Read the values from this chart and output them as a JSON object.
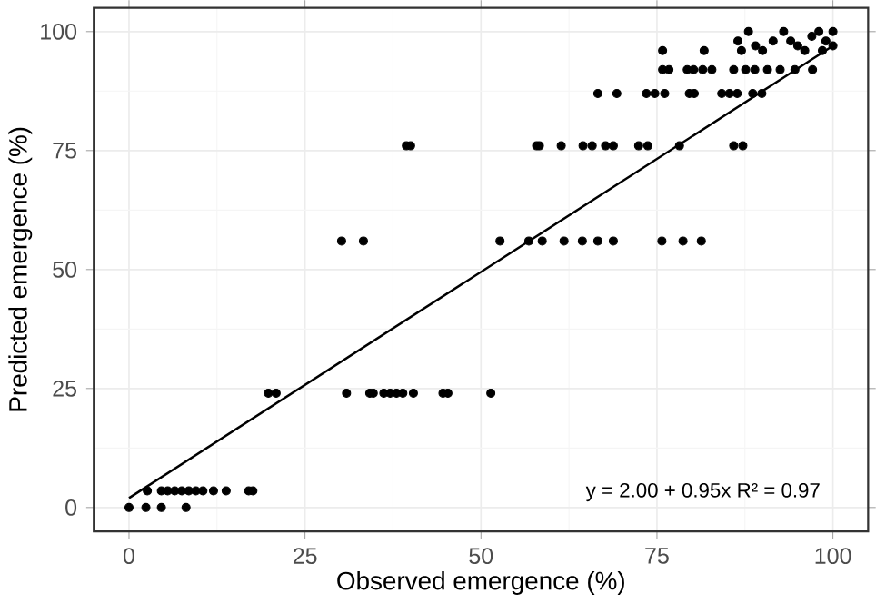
{
  "chart_data": {
    "type": "scatter",
    "xlabel": "Observed emergence (%)",
    "ylabel": "Predicted emergence (%)",
    "xlim": [
      -5,
      105
    ],
    "ylim": [
      -5,
      105
    ],
    "xticks": [
      0,
      25,
      50,
      75,
      100
    ],
    "yticks": [
      0,
      25,
      50,
      75,
      100
    ],
    "grid": true,
    "annotations": [
      "y = 2.00 + 0.95x  R² = 0.97"
    ],
    "series": [
      {
        "color": "#000000",
        "marker": "circle",
        "x": [
          0,
          2.4,
          4.6,
          8.1,
          2.6,
          4.6,
          5.5,
          6.5,
          7.5,
          8.5,
          9.5,
          10.5,
          12,
          13.8,
          17,
          17.6,
          19.8,
          20.9,
          30.9,
          34.2,
          34.7,
          36.2,
          37.1,
          38,
          38.9,
          40.4,
          44.6,
          45.3,
          51.4,
          30.2,
          33.3,
          39.4,
          40,
          52.7,
          56.8,
          58.7,
          61.8,
          64.4,
          66.6,
          68.8,
          75.7,
          78.7,
          81.3,
          57.9,
          58.3,
          61.4,
          64.5,
          65.8,
          67.7,
          68.8,
          72.4,
          73.7,
          78.2,
          85.9,
          87.2,
          66.6,
          69.3,
          73.5,
          74.7,
          76.1,
          79.6,
          80.3,
          84.2,
          85.3,
          86.4,
          88.6,
          89.9,
          75.8,
          76.7,
          79.3,
          80.2,
          81.5,
          82.8,
          85.9,
          87.6,
          88.9,
          90.7,
          92.5,
          94.6,
          97.1,
          75.8,
          81.7,
          86.5,
          87,
          88,
          89,
          90,
          91.5,
          93,
          94,
          95,
          96,
          97,
          98,
          98.5,
          99,
          100,
          100
        ],
        "values": [
          0,
          0,
          0,
          0,
          3.5,
          3.5,
          3.5,
          3.5,
          3.5,
          3.5,
          3.5,
          3.5,
          3.5,
          3.5,
          3.5,
          3.5,
          24,
          24,
          24,
          24,
          24,
          24,
          24,
          24,
          24,
          24,
          24,
          24,
          24,
          56,
          56,
          76,
          76,
          56,
          56,
          56,
          56,
          56,
          56,
          56,
          56,
          56,
          56,
          76,
          76,
          76,
          76,
          76,
          76,
          76,
          76,
          76,
          76,
          76,
          76,
          87,
          87,
          87,
          87,
          87,
          87,
          87,
          87,
          87,
          87,
          87,
          87,
          92,
          92,
          92,
          92,
          92,
          92,
          92,
          92,
          92,
          92,
          92,
          92,
          92,
          96,
          96,
          98,
          96,
          100,
          97,
          96,
          98,
          100,
          98,
          97,
          96,
          99,
          100,
          96,
          98,
          100,
          97
        ]
      },
      {
        "type": "line",
        "color": "#000000",
        "marker": "none",
        "x": [
          0,
          100
        ],
        "values": [
          2,
          97
        ]
      }
    ]
  }
}
